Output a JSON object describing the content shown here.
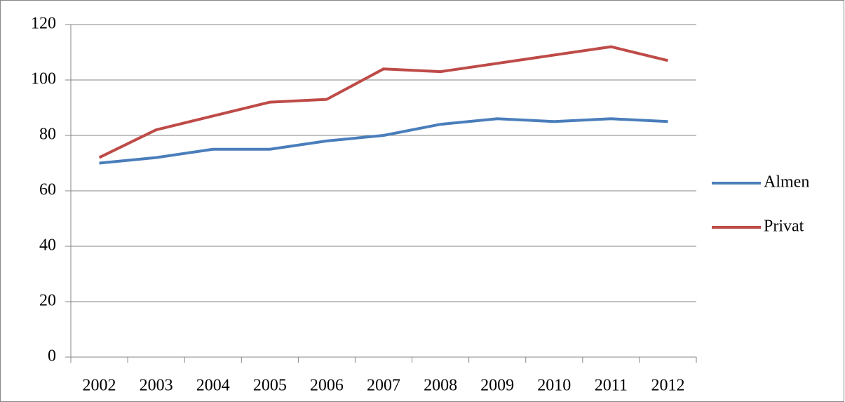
{
  "chart_data": {
    "type": "line",
    "categories": [
      "2002",
      "2003",
      "2004",
      "2005",
      "2006",
      "2007",
      "2008",
      "2009",
      "2010",
      "2011",
      "2012"
    ],
    "series": [
      {
        "name": "Almen",
        "color": "#4a7ebb",
        "values": [
          70,
          72,
          75,
          75,
          78,
          80,
          84,
          86,
          85,
          86,
          85
        ]
      },
      {
        "name": "Privat",
        "color": "#be4b48",
        "values": [
          72,
          82,
          87,
          92,
          93,
          104,
          103,
          106,
          109,
          112,
          107
        ]
      }
    ],
    "ylim": [
      0,
      120
    ],
    "yticks": [
      0,
      20,
      40,
      60,
      80,
      100,
      120
    ],
    "grid": true,
    "legend": "right"
  }
}
